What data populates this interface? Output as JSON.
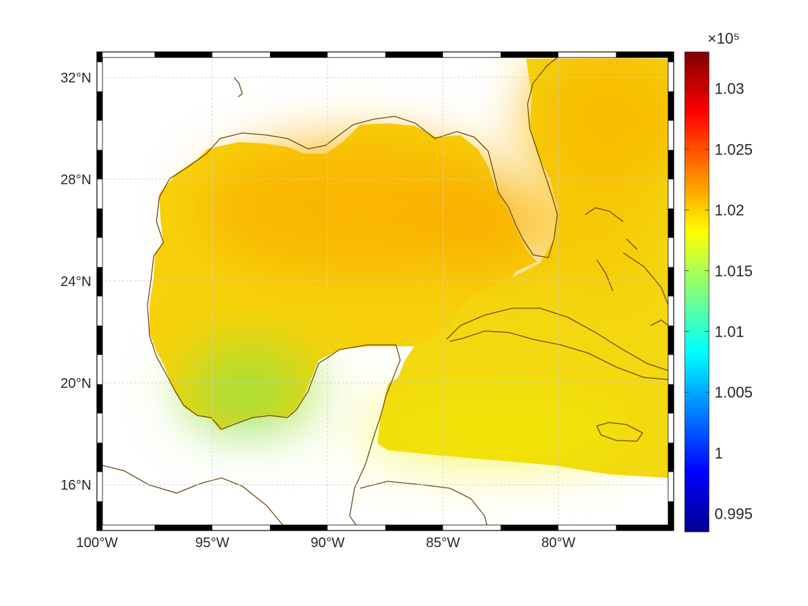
{
  "figure": {
    "colormap": "jet",
    "land_color": "#ffffff",
    "coast_color": "#6b4a10",
    "grid_color": "#d0d0d0"
  },
  "chart_data": {
    "type": "heatmap",
    "projection": "equidistant-cylindrical",
    "lon_range": [
      -100,
      -75
    ],
    "lat_range": [
      14.2,
      33
    ],
    "x_ticks": [
      {
        "value": -100,
        "label": "100°W"
      },
      {
        "value": -95,
        "label": "95°W"
      },
      {
        "value": -90,
        "label": "90°W"
      },
      {
        "value": -85,
        "label": "85°W"
      },
      {
        "value": -80,
        "label": "80°W"
      }
    ],
    "y_ticks": [
      {
        "value": 32,
        "label": "32°N"
      },
      {
        "value": 28,
        "label": "28°N"
      },
      {
        "value": 24,
        "label": "24°N"
      },
      {
        "value": 20,
        "label": "20°N"
      },
      {
        "value": 16,
        "label": "16°N"
      }
    ],
    "grid": true,
    "colorbar": {
      "exponent_label": "×10⁵",
      "range": [
        0.9935,
        1.033
      ],
      "ticks": [
        {
          "value": 0.995,
          "label": "0.995"
        },
        {
          "value": 1.0,
          "label": "1"
        },
        {
          "value": 1.005,
          "label": "1.005"
        },
        {
          "value": 1.01,
          "label": "1.01"
        },
        {
          "value": 1.015,
          "label": "1.015"
        },
        {
          "value": 1.02,
          "label": "1.02"
        },
        {
          "value": 1.025,
          "label": "1.025"
        },
        {
          "value": 1.03,
          "label": "1.03"
        }
      ]
    },
    "field_samples": [
      {
        "lon": -88,
        "lat": 27,
        "value": 1.0215
      },
      {
        "lon": -85,
        "lat": 26,
        "value": 1.0218
      },
      {
        "lon": -92,
        "lat": 28,
        "value": 1.0212
      },
      {
        "lon": -96,
        "lat": 27,
        "value": 1.0205
      },
      {
        "lon": -97,
        "lat": 24,
        "value": 1.0195
      },
      {
        "lon": -93,
        "lat": 23,
        "value": 1.0185
      },
      {
        "lon": -95,
        "lat": 21,
        "value": 1.017
      },
      {
        "lon": -94,
        "lat": 19,
        "value": 1.0155
      },
      {
        "lon": -86,
        "lat": 23,
        "value": 1.0195
      },
      {
        "lon": -78,
        "lat": 30,
        "value": 1.021
      },
      {
        "lon": -76,
        "lat": 26,
        "value": 1.0205
      },
      {
        "lon": -80,
        "lat": 21,
        "value": 1.0185
      },
      {
        "lon": -82,
        "lat": 18,
        "value": 1.018
      },
      {
        "lon": -77,
        "lat": 17,
        "value": 1.0178
      }
    ]
  }
}
